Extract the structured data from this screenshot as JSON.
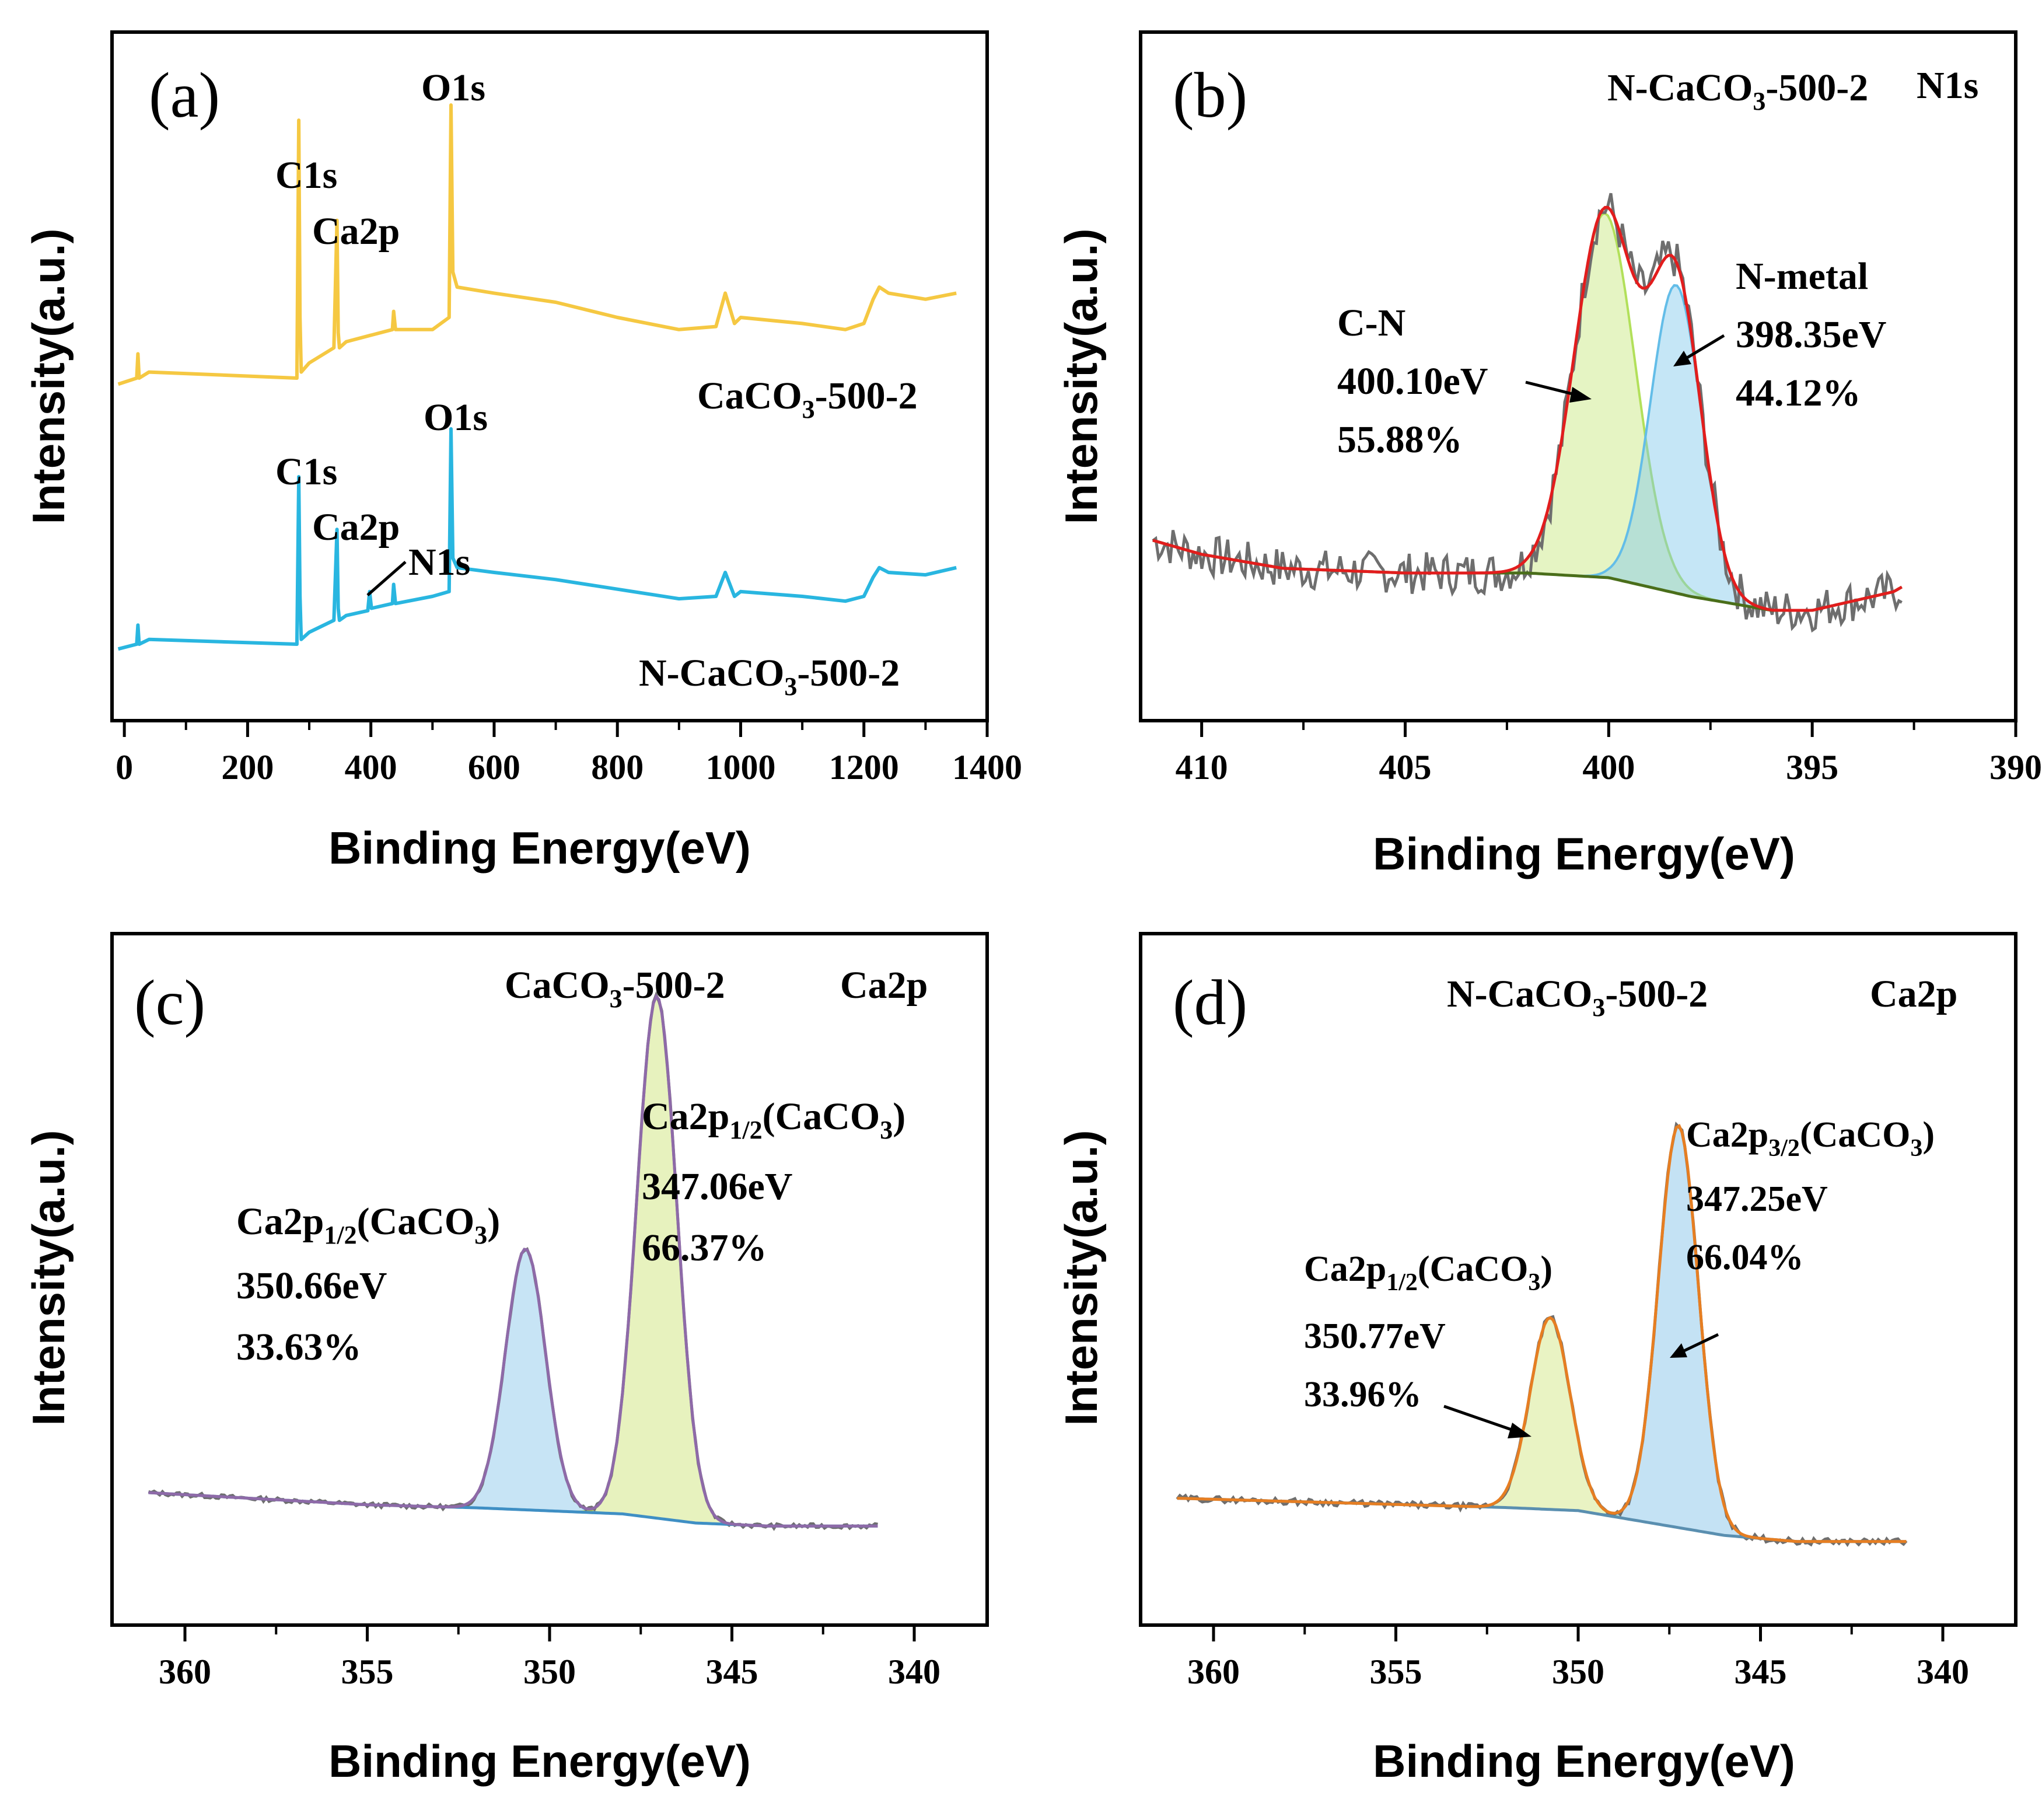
{
  "chart_data": [
    {
      "type": "line",
      "panel": "(a)",
      "xlabel": "Binding Energy(eV)",
      "ylabel": "Intensity(a.u.)",
      "xlim": [
        -20,
        1400
      ],
      "xticks": [
        0,
        200,
        400,
        600,
        800,
        1000,
        1200,
        1400
      ],
      "series": [
        {
          "name": "CaCO3-500-2",
          "color": "#f5c842",
          "x": [
            -10,
            20,
            22,
            24,
            40,
            280,
            283,
            285,
            287,
            300,
            340,
            345,
            347,
            349,
            360,
            435,
            437,
            440,
            500,
            527,
            530,
            533,
            540,
            600,
            700,
            800,
            900,
            960,
            975,
            990,
            1000,
            1100,
            1170,
            1200,
            1215,
            1225,
            1240,
            1300,
            1350
          ],
          "y": [
            0.08,
            0.1,
            0.18,
            0.1,
            0.12,
            0.1,
            0.95,
            0.3,
            0.12,
            0.15,
            0.2,
            0.62,
            0.25,
            0.2,
            0.22,
            0.26,
            0.32,
            0.26,
            0.26,
            0.3,
            1.0,
            0.45,
            0.4,
            0.38,
            0.35,
            0.3,
            0.26,
            0.27,
            0.38,
            0.28,
            0.3,
            0.28,
            0.26,
            0.28,
            0.36,
            0.4,
            0.38,
            0.36,
            0.38
          ]
        },
        {
          "name": "N-CaCO3-500-2",
          "color": "#29b6e0",
          "x": [
            -10,
            20,
            22,
            24,
            40,
            280,
            283,
            285,
            287,
            300,
            340,
            345,
            347,
            349,
            360,
            395,
            398,
            401,
            435,
            437,
            440,
            500,
            527,
            530,
            533,
            540,
            600,
            700,
            800,
            900,
            960,
            975,
            990,
            1000,
            1100,
            1170,
            1200,
            1215,
            1225,
            1240,
            1300,
            1350
          ],
          "y": [
            0.08,
            0.1,
            0.18,
            0.1,
            0.12,
            0.1,
            0.8,
            0.3,
            0.12,
            0.15,
            0.2,
            0.58,
            0.25,
            0.2,
            0.22,
            0.24,
            0.32,
            0.25,
            0.27,
            0.35,
            0.27,
            0.3,
            0.32,
            1.0,
            0.46,
            0.42,
            0.4,
            0.37,
            0.33,
            0.29,
            0.3,
            0.4,
            0.3,
            0.32,
            0.3,
            0.28,
            0.3,
            0.38,
            0.42,
            0.4,
            0.39,
            0.42
          ]
        }
      ],
      "labels": {
        "top_O1s": "O1s",
        "top_C1s": "C1s",
        "top_Ca2p": "Ca2p",
        "top_name": "CaCO",
        "bot_O1s": "O1s",
        "bot_C1s": "C1s",
        "bot_Ca2p": "Ca2p",
        "bot_N1s": "N1s",
        "bot_name": "N-CaCO",
        "sub3": "3",
        "suffix": "-500-2"
      }
    },
    {
      "type": "line",
      "panel": "(b)",
      "xlabel": "Binding Energy(eV)",
      "ylabel": "Intensity(a.u.)",
      "xlim": [
        411.5,
        390
      ],
      "xticks": [
        410,
        405,
        400,
        395,
        390
      ],
      "title_main": "N-CaCO",
      "title_sub": "3",
      "title_suffix": "-500-2",
      "title_right": "N1s",
      "background": {
        "x": [
          411.2,
          410,
          408,
          405,
          402,
          400,
          398,
          396,
          395,
          393,
          392.8
        ],
        "y": [
          0.13,
          0.1,
          0.07,
          0.06,
          0.06,
          0.05,
          0.01,
          -0.02,
          -0.02,
          0.02,
          0.03
        ]
      },
      "peaks": [
        {
          "name": "C-N",
          "center": 400.1,
          "height": 0.78,
          "sigma": 0.75,
          "fill": "#c6e67a",
          "stroke": "#b2e05a",
          "energy": "400.10eV",
          "percent": "55.88%"
        },
        {
          "name": "N-metal",
          "center": 398.35,
          "height": 0.66,
          "sigma": 0.62,
          "fill": "#7fc7ea",
          "stroke": "#63bde8",
          "energy": "398.35eV",
          "percent": "44.12%"
        }
      ],
      "envelope_color": "#e21d1d",
      "raw_color": "#6e6e6e"
    },
    {
      "type": "line",
      "panel": "(c)",
      "xlabel": "Binding Energy(eV)",
      "ylabel": "Intensity(a.u.)",
      "xlim": [
        362,
        338
      ],
      "xticks": [
        360,
        355,
        350,
        345,
        340
      ],
      "title_main": "CaCO",
      "title_sub": "3",
      "title_suffix": "-500-2",
      "title_right": "Ca2p",
      "background": {
        "x": [
          361,
          355,
          352,
          350,
          348,
          346,
          344,
          341
        ],
        "y": [
          0.1,
          0.06,
          0.05,
          0.04,
          0.03,
          0.0,
          -0.01,
          -0.01
        ]
      },
      "peaks": [
        {
          "name": "Ca2p1/2(CaCO3)",
          "center": 350.66,
          "height": 0.86,
          "sigma": 0.55,
          "fill": "#82c3e8",
          "stroke": "#5cb3e3",
          "energy": "350.66eV",
          "percent": "33.63%"
        },
        {
          "name": "Ca2p1/2(CaCO3)",
          "center": 347.06,
          "height": 1.72,
          "sigma": 0.55,
          "fill": "#c9e26e",
          "stroke": "#a9c93a",
          "energy": "347.06eV",
          "percent": "66.37%"
        }
      ],
      "envelope_color": "#8e6aa8",
      "raw_color": "#6e6e6e"
    },
    {
      "type": "line",
      "panel": "(d)",
      "xlabel": "Binding Energy(eV)",
      "ylabel": "Intensity(a.u.)",
      "xlim": [
        362,
        338
      ],
      "xticks": [
        360,
        355,
        350,
        345,
        340
      ],
      "title_main": "N-CaCO",
      "title_sub": "3",
      "title_suffix": "-500-2",
      "title_right": "Ca2p",
      "background": {
        "x": [
          361,
          355,
          352,
          350,
          348,
          346,
          344,
          341
        ],
        "y": [
          0.08,
          0.06,
          0.05,
          0.04,
          0.0,
          -0.04,
          -0.06,
          -0.06
        ]
      },
      "peaks": [
        {
          "name": "Ca2p1/2(CaCO3)",
          "center": 350.77,
          "height": 0.62,
          "sigma": 0.55,
          "fill": "#cfe47a",
          "stroke": "#b6d94f",
          "energy": "350.77eV",
          "percent": "33.96%"
        },
        {
          "name": "Ca2p3/2(CaCO3)",
          "center": 347.25,
          "height": 1.3,
          "sigma": 0.55,
          "fill": "#7cbfe6",
          "stroke": "#4da4d8",
          "energy": "347.25eV",
          "percent": "66.04%"
        }
      ],
      "envelope_color": "#e67e22",
      "raw_color": "#6e6e6e"
    }
  ],
  "text": {
    "b_cn": "C-N",
    "b_nmetal": "N-metal",
    "c_peak_main": "Ca2p",
    "c_peak_sub": "1/2",
    "c_peak_suffix": "(CaCO",
    "c_peak_sub3": "3",
    "c_peak_close": ")",
    "d_peak32_sub": "3/2"
  }
}
